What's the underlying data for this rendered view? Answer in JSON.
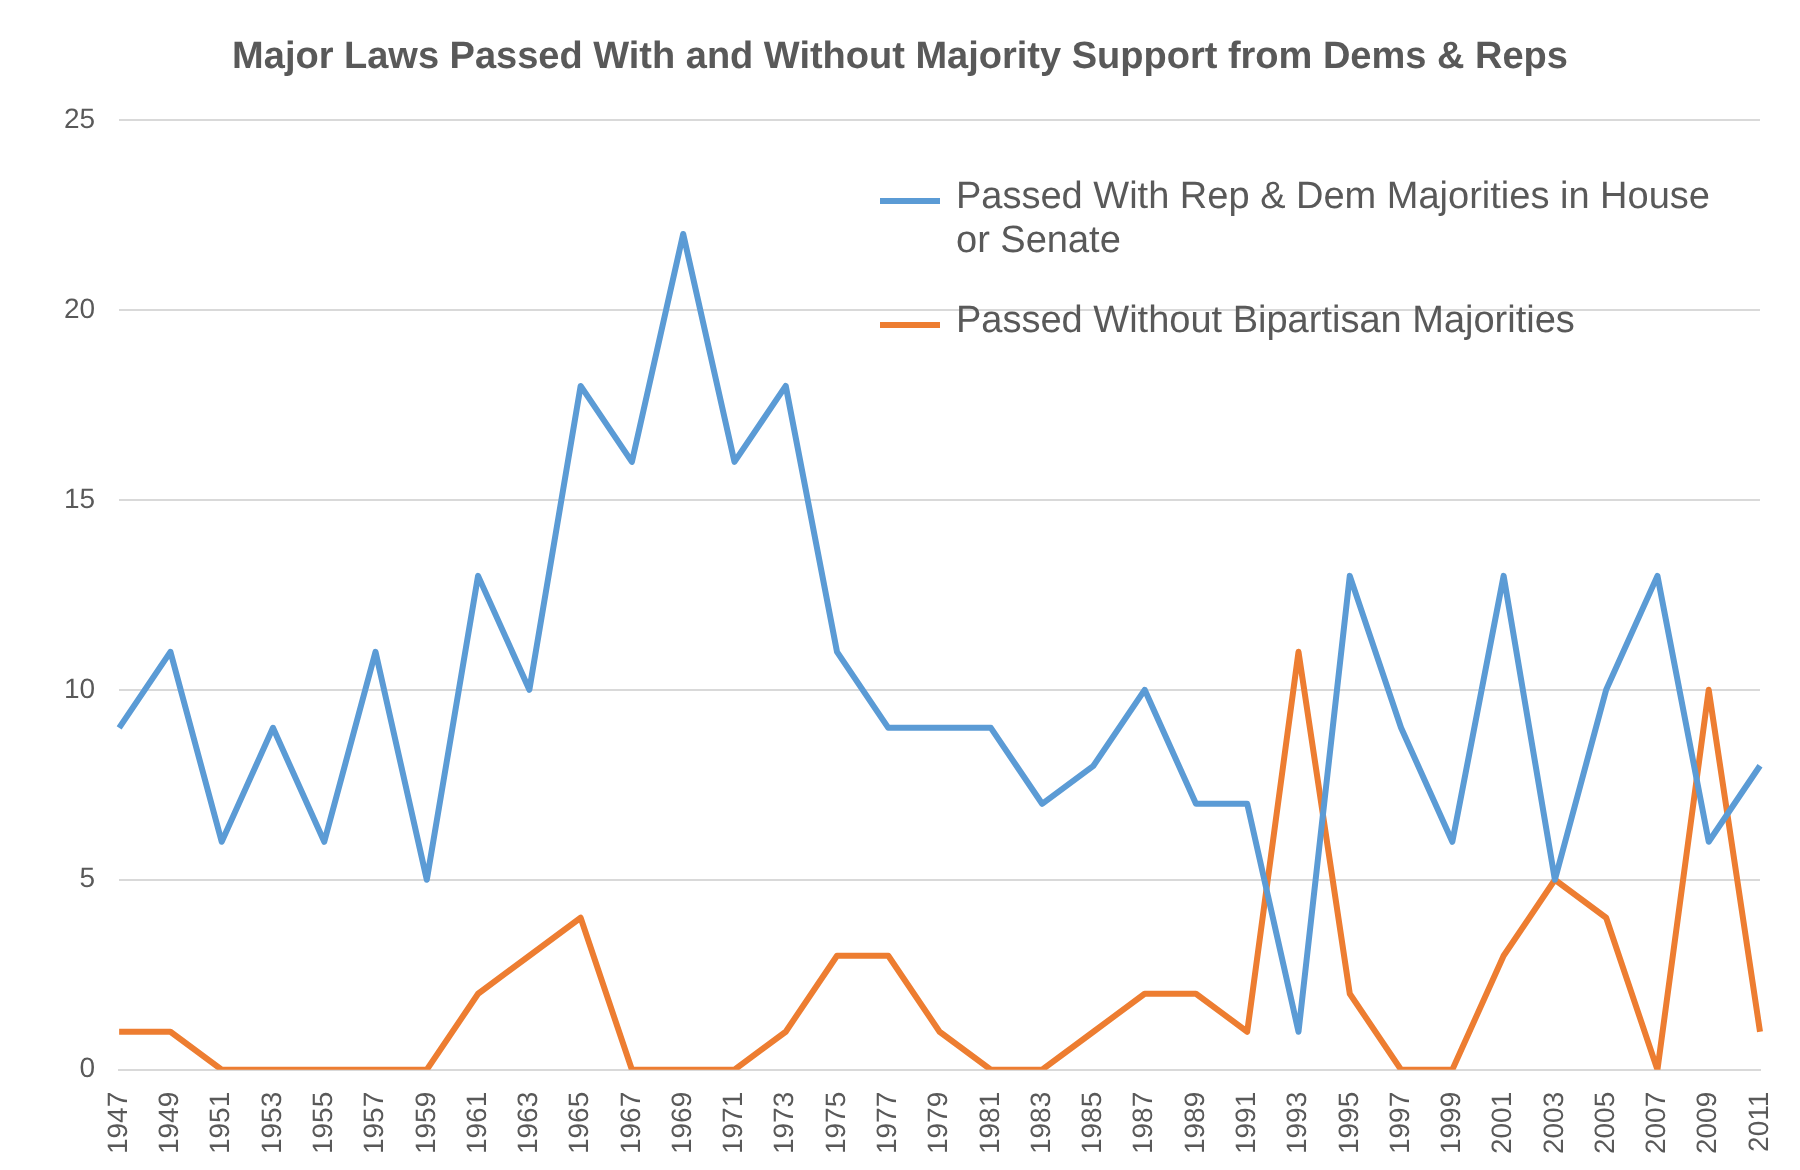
{
  "chart_data": {
    "type": "line",
    "title": "Major Laws Passed With and Without Majority Support from Dems & Reps",
    "categories": [
      "1947",
      "1949",
      "1951",
      "1953",
      "1955",
      "1957",
      "1959",
      "1961",
      "1963",
      "1965",
      "1967",
      "1969",
      "1971",
      "1973",
      "1975",
      "1977",
      "1979",
      "1981",
      "1983",
      "1985",
      "1987",
      "1989",
      "1991",
      "1993",
      "1995",
      "1997",
      "1999",
      "2001",
      "2003",
      "2005",
      "2007",
      "2009",
      "2011"
    ],
    "series": [
      {
        "name": "Passed With Rep & Dem Majorities in House or Senate",
        "color": "#5b9bd5",
        "values": [
          9,
          11,
          6,
          9,
          6,
          11,
          5,
          13,
          10,
          18,
          16,
          22,
          16,
          18,
          11,
          9,
          9,
          9,
          7,
          8,
          10,
          7,
          7,
          1,
          13,
          9,
          6,
          13,
          5,
          10,
          13,
          6,
          8
        ]
      },
      {
        "name": "Passed Without Bipartisan Majorities",
        "color": "#ed7d31",
        "values": [
          1,
          1,
          0,
          0,
          0,
          0,
          0,
          2,
          3,
          4,
          0,
          0,
          0,
          1,
          3,
          3,
          1,
          0,
          0,
          1,
          2,
          2,
          1,
          11,
          2,
          0,
          0,
          3,
          5,
          4,
          0,
          10,
          1
        ]
      }
    ],
    "ylim": [
      0,
      25
    ],
    "yticks": [
      0,
      5,
      10,
      15,
      20,
      25
    ],
    "grid": "y",
    "legend": "top right",
    "marker": "none",
    "line_style": "solid"
  }
}
